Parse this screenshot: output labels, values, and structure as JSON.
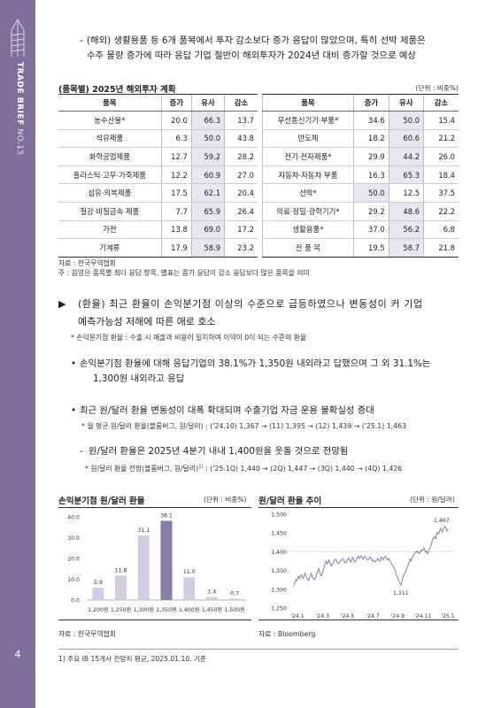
{
  "sidebar": {
    "label_bold": "TRADE BRIEF",
    "label_light": "NO.15",
    "page_number": "4"
  },
  "intro": {
    "dash": "-",
    "line1": "(해외) 생활용품 등 6개 품목에서 투자 감소보다 증가 응답이 많았으며, 특히 선박 제품은",
    "line2": "수주 물량 증가에 따라 응답 기업 절반이 해외투자가 2024년 대비 증가할 것으로 예상"
  },
  "table": {
    "title": "(품목별) 2025년 해외투자 계획",
    "unit": "(단위 : 비중%)",
    "headers": [
      "품목",
      "증가",
      "유사",
      "감소",
      "품목",
      "증가",
      "유사",
      "감소"
    ],
    "rows": [
      {
        "l_item": "농수산물*",
        "l_inc": "20.0",
        "l_sim": "66.3",
        "l_dec": "13.7",
        "r_item": "무선통신기기·부품*",
        "r_inc": "34.6",
        "r_sim": "50.0",
        "r_dec": "15.4"
      },
      {
        "l_item": "석유제품",
        "l_inc": "6.3",
        "l_sim": "50.0",
        "l_dec": "43.8",
        "r_item": "반도체",
        "r_inc": "18.2",
        "r_sim": "60.6",
        "r_dec": "21.2"
      },
      {
        "l_item": "화학공업제품",
        "l_inc": "12.7",
        "l_sim": "59.2",
        "l_dec": "28.2",
        "r_item": "전기·전자제품*",
        "r_inc": "29.9",
        "r_sim": "44.2",
        "r_dec": "26.0"
      },
      {
        "l_item": "플라스틱·고무·가죽제품",
        "l_inc": "12.2",
        "l_sim": "60.9",
        "l_dec": "27.0",
        "r_item": "자동차·자동차 부품",
        "r_inc": "16.3",
        "r_sim": "65.3",
        "r_dec": "18.4"
      },
      {
        "l_item": "섬유·의복제품",
        "l_inc": "17.5",
        "l_sim": "62.1",
        "l_dec": "20.4",
        "r_item": "선박*",
        "r_inc": "50.0",
        "r_sim": "12.5",
        "r_dec": "37.5"
      },
      {
        "l_item": "철강·비철금속 제품",
        "l_inc": "7.7",
        "l_sim": "65.9",
        "l_dec": "26.4",
        "r_item": "의료·정밀·광학기기*",
        "r_inc": "29.2",
        "r_sim": "48.6",
        "r_dec": "22.2"
      },
      {
        "l_item": "가전",
        "l_inc": "13.8",
        "l_sim": "69.0",
        "l_dec": "17.2",
        "r_item": "생활용품*",
        "r_inc": "37.0",
        "r_sim": "56.2",
        "r_dec": "6.8"
      },
      {
        "l_item": "기계류",
        "l_inc": "17.9",
        "l_sim": "58.9",
        "l_dec": "23.2",
        "r_item": "전 품 목",
        "r_inc": "19.5",
        "r_sim": "58.7",
        "r_dec": "21.8"
      }
    ],
    "highlight_cell": "r_inc_row4",
    "source": "자료 : 한국무역협회",
    "note": "주 : 음영은 품목별 최다 응답 항목, 별표는 증가 응답이 감소 응답보다 많은 품목을 의미"
  },
  "section": {
    "marker": "▶",
    "line1": "(환율) 최근 환율이 손익분기점 이상의 수준으로 급등하였으나 변동성이 커 기업",
    "line2": "예측가능성 저해에 따른 애로 호소",
    "subnote": "* 손익분기점 환율 : 수출 시 매출과 비용이 일치하여 이익이 0이 되는 수준의 환율"
  },
  "bullets": [
    {
      "dot": "•",
      "line1": "손익분기점 환율에 대해 응답기업의 38.1%가 1,350원 내외라고 답했으며 그 외 31.1%는",
      "line2": "1,300원 내외라고 응답"
    },
    {
      "dot": "•",
      "line1": "최근 원/달러 환율 변동성이 대폭 확대되며 수출기업 자금 운용 불확실성 증대",
      "note": "* 월 평균 원/달러 환율(블룸버그, 원/달러) : ('24.10) 1,367 → (11) 1,395 → (12) 1,439 → ('25.1) 1,463"
    },
    {
      "dot": "-",
      "line1": "원/달러 환율은 2025년 4분기 내내 1,400원을 웃돌 것으로 전망됨",
      "note": "* 원/달러 환율 전망(블룸버그, 원/달러)",
      "note_sup": "1)",
      "note_tail": " : ('25.1Q) 1,440 → (2Q) 1,447 → (3Q) 1,440 → (4Q) 1,426"
    }
  ],
  "chart_data": [
    {
      "type": "bar",
      "title": "손익분기점 원/달러 환율",
      "unit": "(단위 : 비중%)",
      "categories": [
        "1,200원",
        "1,250원",
        "1,300원",
        "1,350원",
        "1,400원",
        "1,450원",
        "1,500원"
      ],
      "values": [
        5.9,
        11.8,
        31.1,
        38.1,
        11.0,
        1.4,
        0.7
      ],
      "value_labels": [
        "5.9",
        "11.8",
        "31.1",
        "38.1",
        "11.0",
        "1.4",
        "0.7"
      ],
      "ylim": [
        0,
        40
      ],
      "yticks": [
        "0.0",
        "10.0",
        "20.0",
        "30.0",
        "40.0"
      ],
      "highlight_index": 3,
      "colors": {
        "bar": "#d4cce3",
        "highlight": "#8a7aa8"
      },
      "source": "자료 : 한국무역협회"
    },
    {
      "type": "line",
      "title": "원/달러 환율 추이",
      "unit": "(단위 : 원/달러)",
      "xticks": [
        "'24.1",
        "'24.3",
        "'24.5",
        "'24.7",
        "'24.9",
        "'24.11",
        "'25.1"
      ],
      "ylim": [
        1250,
        1500
      ],
      "yticks": [
        "1,250",
        "1,300",
        "1,350",
        "1,400",
        "1,450",
        "1,500"
      ],
      "reference_line": 1400,
      "annotations": [
        {
          "label": "1,311",
          "value": 1311
        },
        {
          "label": "1,467",
          "value": 1467
        }
      ],
      "values": [
        1310,
        1318,
        1325,
        1322,
        1330,
        1335,
        1328,
        1333,
        1338,
        1332,
        1329,
        1335,
        1343,
        1336,
        1330,
        1327,
        1323,
        1330,
        1335,
        1342,
        1332,
        1328,
        1326,
        1330,
        1333,
        1342,
        1350,
        1355,
        1345,
        1338,
        1336,
        1345,
        1352,
        1362,
        1370,
        1375,
        1368,
        1372,
        1378,
        1370,
        1365,
        1362,
        1368,
        1372,
        1378,
        1380,
        1376,
        1372,
        1368,
        1370,
        1374,
        1377,
        1379,
        1382,
        1378,
        1372,
        1370,
        1374,
        1377,
        1381,
        1383,
        1376,
        1372,
        1380,
        1385,
        1378,
        1372,
        1376,
        1381,
        1385,
        1388,
        1382,
        1385,
        1390,
        1386,
        1380,
        1384,
        1388,
        1385,
        1382,
        1378,
        1380,
        1384,
        1386,
        1380,
        1376,
        1378,
        1374,
        1372,
        1376,
        1378,
        1382,
        1378,
        1375,
        1380,
        1386,
        1382,
        1378,
        1384,
        1388,
        1385,
        1380,
        1378,
        1382,
        1376,
        1372,
        1368,
        1364,
        1360,
        1355,
        1350,
        1340,
        1334,
        1328,
        1320,
        1315,
        1311,
        1318,
        1330,
        1336,
        1340,
        1345,
        1352,
        1360,
        1365,
        1372,
        1380,
        1375,
        1382,
        1388,
        1392,
        1395,
        1400,
        1398,
        1402,
        1398,
        1395,
        1400,
        1405,
        1402,
        1406,
        1410,
        1404,
        1398,
        1402,
        1395,
        1400,
        1408,
        1412,
        1418,
        1430,
        1435,
        1440,
        1438,
        1435,
        1450,
        1452,
        1448,
        1455,
        1462,
        1458,
        1452,
        1460,
        1465,
        1467,
        1463,
        1455,
        1460
      ],
      "source": "자료 : Bloomberg"
    }
  ],
  "footnote": "1)  주요 IB 15개사 전망치 평균, 2025.01.10. 기준"
}
